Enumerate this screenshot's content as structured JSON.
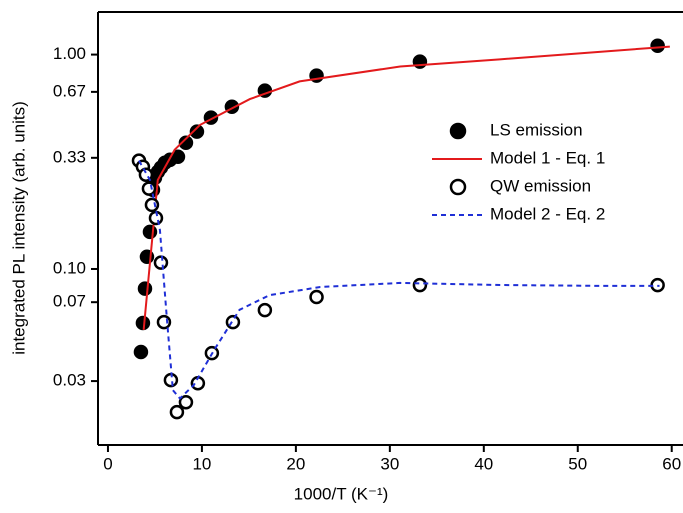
{
  "chart_data": {
    "type": "scatter",
    "x_label": "1000/T (K⁻¹)",
    "y_label": "integrated PL intensity (arb. units)",
    "xlim": [
      -1.06,
      61.2
    ],
    "ylim": [
      0.0151,
      1.58
    ],
    "yscale": "log",
    "xticks": [
      0,
      10,
      20,
      30,
      40,
      50,
      60
    ],
    "yticks": [
      {
        "value": 1,
        "label": "1.00"
      },
      0.67,
      0.33,
      {
        "value": 0.1,
        "label": "0.10"
      },
      0.07,
      0.03
    ],
    "legend": "upper right",
    "series": [
      {
        "name": "LS emission",
        "mode": "markers",
        "marker": "filled",
        "color": "#000000",
        "x": [
          3.51,
          3.72,
          3.94,
          4.15,
          4.47,
          4.79,
          5.0,
          5.32,
          5.64,
          6.06,
          6.6,
          7.45,
          8.3,
          9.47,
          10.96,
          13.19,
          16.7,
          22.2,
          33.2,
          58.5
        ],
        "values": [
          0.041,
          0.056,
          0.081,
          0.114,
          0.149,
          0.234,
          0.266,
          0.284,
          0.297,
          0.313,
          0.323,
          0.334,
          0.388,
          0.437,
          0.508,
          0.571,
          0.679,
          0.798,
          0.927,
          1.1
        ]
      },
      {
        "name": "Model 1 - Eq. 1",
        "mode": "line",
        "dash": false,
        "color": "#e31a1c",
        "x": [
          3.8,
          4.3,
          5.3,
          7.1,
          9.8,
          15.1,
          20.4,
          31.1,
          41.7,
          52.3,
          59.8
        ],
        "values": [
          0.052,
          0.089,
          0.26,
          0.36,
          0.47,
          0.62,
          0.75,
          0.88,
          0.95,
          1.03,
          1.09
        ]
      },
      {
        "name": "QW emission",
        "mode": "markers",
        "marker": "open",
        "color": "#000000",
        "x": [
          3.3,
          3.72,
          4.04,
          4.36,
          4.68,
          5.11,
          5.64,
          5.96,
          6.7,
          7.34,
          8.3,
          9.57,
          11.06,
          13.3,
          16.7,
          22.2,
          33.2,
          58.5
        ],
        "values": [
          0.32,
          0.3,
          0.275,
          0.237,
          0.199,
          0.173,
          0.107,
          0.0565,
          0.0303,
          0.0215,
          0.0239,
          0.0293,
          0.0405,
          0.0565,
          0.0643,
          0.074,
          0.0841,
          0.0841
        ]
      },
      {
        "name": "Model 2 - Eq. 2",
        "mode": "line",
        "dash": true,
        "color": "#1f2fd6",
        "x": [
          3.3,
          4.47,
          5.53,
          6.28,
          6.91,
          7.66,
          9.15,
          11.3,
          14.0,
          17.2,
          22.6,
          31.1,
          41.7,
          52.3,
          58.7
        ],
        "values": [
          0.32,
          0.26,
          0.152,
          0.058,
          0.0272,
          0.0249,
          0.0288,
          0.0419,
          0.0645,
          0.0755,
          0.0824,
          0.0861,
          0.0842,
          0.0834,
          0.0834
        ]
      }
    ]
  }
}
